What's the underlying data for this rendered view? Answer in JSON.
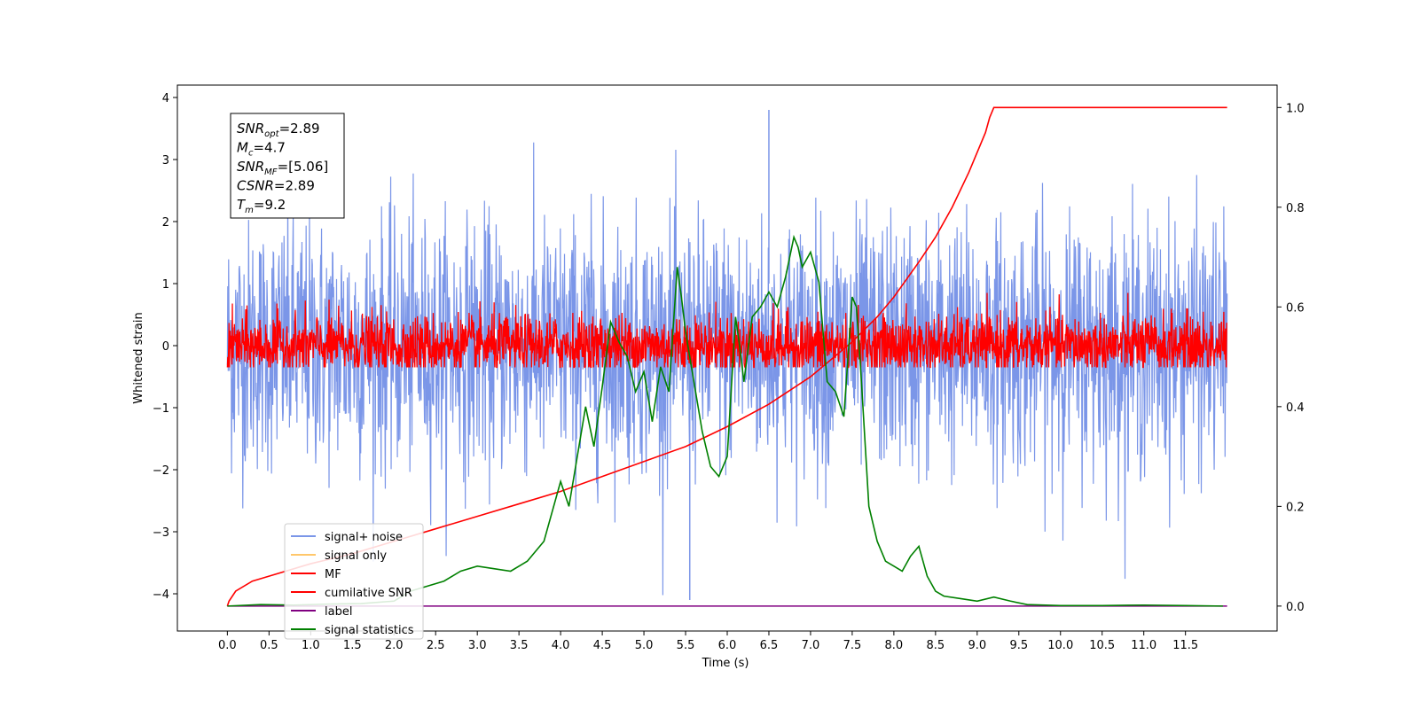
{
  "chart_data": {
    "type": "line",
    "xlabel": "Time (s)",
    "ylabel": "Whitened strain",
    "xlim": [
      -0.6,
      12.6
    ],
    "ylim": [
      -4.6,
      4.2
    ],
    "ylim_right": [
      -0.05,
      1.045
    ],
    "xticks": [
      0.0,
      0.5,
      1.0,
      1.5,
      2.0,
      2.5,
      3.0,
      3.5,
      4.0,
      4.5,
      5.0,
      5.5,
      6.0,
      6.5,
      7.0,
      7.5,
      8.0,
      8.5,
      9.0,
      9.5,
      10.0,
      10.5,
      11.0,
      11.5
    ],
    "xtick_labels": [
      "0.0",
      "0.5",
      "1.0",
      "1.5",
      "2.0",
      "2.5",
      "3.0",
      "3.5",
      "4.0",
      "4.5",
      "5.0",
      "5.5",
      "6.0",
      "6.5",
      "7.0",
      "7.5",
      "8.0",
      "8.5",
      "9.0",
      "9.5",
      "10.0",
      "10.5",
      "11.0",
      "11.5"
    ],
    "yticks_left": [
      -4,
      -3,
      -2,
      -1,
      0,
      1,
      2,
      3,
      4
    ],
    "ytick_labels_left": [
      "−4",
      "−3",
      "−2",
      "−1",
      "0",
      "1",
      "2",
      "3",
      "4"
    ],
    "yticks_right": [
      0.0,
      0.2,
      0.4,
      0.6,
      0.8,
      1.0
    ],
    "ytick_labels_right": [
      "0.0",
      "0.2",
      "0.4",
      "0.6",
      "0.8",
      "1.0"
    ],
    "grid": false,
    "legend_placement": "lower-left",
    "annotation": {
      "lines": [
        {
          "main": "SNR",
          "sub": "opt",
          "value": "=2.89"
        },
        {
          "main": "M",
          "sub": "c",
          "value": "=4.7"
        },
        {
          "main": "SNR",
          "sub": "MF",
          "value": "=[5.06]"
        },
        {
          "main": "CSNR",
          "sub": "",
          "value": "=2.89"
        },
        {
          "main": "T",
          "sub": "m",
          "value": "=9.2"
        }
      ]
    },
    "series": [
      {
        "name": "signal+ noise",
        "color": "#7b96e8",
        "axis": "left",
        "style": "noise",
        "t_range": [
          0,
          12.0
        ],
        "amplitude_typical": 1.0,
        "peak_max": 3.8,
        "peak_min": -4.1
      },
      {
        "name": "signal only",
        "color": "#ffc76b",
        "axis": "left",
        "values": []
      },
      {
        "name": "MF",
        "color": "#ff0000",
        "axis": "left",
        "style": "noise",
        "t_range": [
          0,
          12.0
        ],
        "amplitude_typical": 0.25,
        "peak_max": 0.85,
        "peak_min": -0.35
      },
      {
        "name": "cumilative SNR",
        "color": "#ff0000",
        "axis": "right",
        "t": [
          0.0,
          0.02,
          0.1,
          0.3,
          0.5,
          1.0,
          1.5,
          2.0,
          2.5,
          3.0,
          3.5,
          4.0,
          4.5,
          5.0,
          5.5,
          6.0,
          6.5,
          7.0,
          7.5,
          7.8,
          8.0,
          8.3,
          8.5,
          8.7,
          8.9,
          9.0,
          9.1,
          9.15,
          9.2,
          12.0
        ],
        "values": [
          0.0,
          0.01,
          0.03,
          0.05,
          0.06,
          0.085,
          0.105,
          0.13,
          0.155,
          0.18,
          0.205,
          0.23,
          0.26,
          0.29,
          0.32,
          0.36,
          0.405,
          0.46,
          0.53,
          0.58,
          0.62,
          0.69,
          0.74,
          0.8,
          0.87,
          0.91,
          0.95,
          0.98,
          1.0,
          1.0
        ]
      },
      {
        "name": "label",
        "color": "#800080",
        "axis": "right",
        "t": [
          0.0,
          12.0
        ],
        "values": [
          0.0,
          0.0
        ]
      },
      {
        "name": "signal statistics",
        "color": "#008000",
        "axis": "right",
        "t": [
          0.0,
          0.4,
          0.8,
          1.2,
          1.6,
          2.0,
          2.2,
          2.4,
          2.6,
          2.8,
          3.0,
          3.2,
          3.4,
          3.6,
          3.8,
          4.0,
          4.1,
          4.2,
          4.3,
          4.4,
          4.5,
          4.6,
          4.7,
          4.8,
          4.9,
          5.0,
          5.1,
          5.2,
          5.3,
          5.4,
          5.45,
          5.5,
          5.6,
          5.7,
          5.8,
          5.9,
          6.0,
          6.1,
          6.15,
          6.2,
          6.3,
          6.4,
          6.5,
          6.6,
          6.7,
          6.8,
          6.85,
          6.9,
          7.0,
          7.1,
          7.2,
          7.3,
          7.4,
          7.5,
          7.55,
          7.6,
          7.7,
          7.8,
          7.9,
          8.0,
          8.1,
          8.2,
          8.3,
          8.4,
          8.5,
          8.6,
          8.8,
          9.0,
          9.2,
          9.4,
          9.6,
          10.0,
          10.5,
          11.0,
          11.5,
          11.95
        ],
        "values": [
          0.0,
          0.003,
          0.002,
          0.004,
          0.005,
          0.01,
          0.03,
          0.04,
          0.05,
          0.07,
          0.08,
          0.075,
          0.07,
          0.09,
          0.13,
          0.25,
          0.2,
          0.3,
          0.4,
          0.32,
          0.44,
          0.57,
          0.53,
          0.5,
          0.43,
          0.47,
          0.37,
          0.48,
          0.43,
          0.68,
          0.62,
          0.55,
          0.45,
          0.35,
          0.28,
          0.26,
          0.3,
          0.58,
          0.52,
          0.45,
          0.58,
          0.6,
          0.63,
          0.6,
          0.66,
          0.74,
          0.72,
          0.68,
          0.71,
          0.65,
          0.45,
          0.43,
          0.38,
          0.62,
          0.6,
          0.48,
          0.2,
          0.13,
          0.09,
          0.08,
          0.07,
          0.1,
          0.12,
          0.06,
          0.03,
          0.02,
          0.015,
          0.01,
          0.018,
          0.01,
          0.003,
          0.001,
          0.001,
          0.002,
          0.001,
          0.0
        ]
      }
    ]
  }
}
